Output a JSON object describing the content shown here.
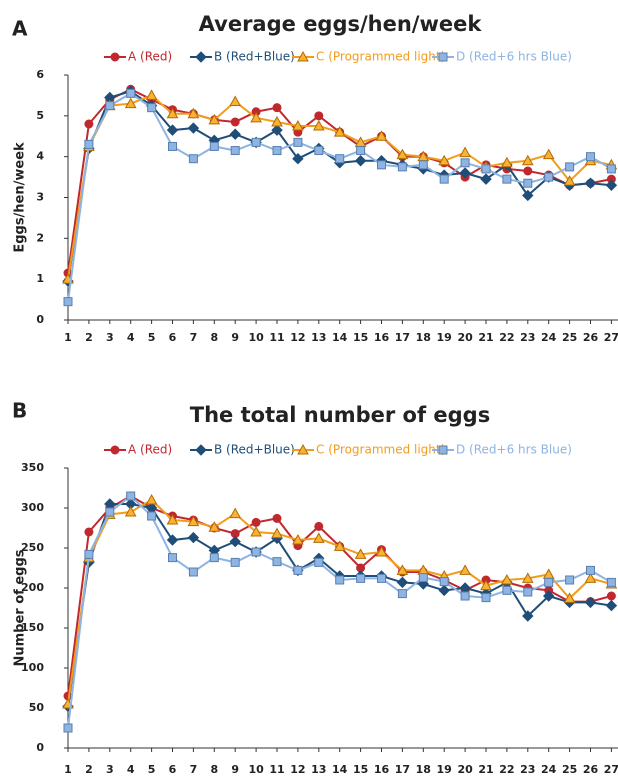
{
  "chart_data": [
    {
      "type": "line",
      "panel_label": "A",
      "title": "Average eggs/hen/week",
      "y_label": "Eggs/hen/week",
      "categories": [
        "1",
        "2",
        "3",
        "4",
        "5",
        "6",
        "7",
        "8",
        "9",
        "10",
        "11",
        "12",
        "13",
        "14",
        "15",
        "16",
        "17",
        "18",
        "19",
        "20",
        "21",
        "22",
        "23",
        "24",
        "25",
        "26",
        "27"
      ],
      "ylim": [
        0,
        6
      ],
      "yticks": [
        0,
        1,
        2,
        3,
        4,
        5,
        6
      ],
      "legend": "top",
      "series": [
        {
          "name": "A (Red)",
          "color": "#c0282e",
          "marker": "circle",
          "values": [
            1.15,
            4.8,
            5.4,
            5.65,
            5.4,
            5.15,
            5.05,
            4.9,
            4.85,
            5.1,
            5.2,
            4.6,
            5.0,
            4.6,
            4.25,
            4.5,
            4.0,
            4.0,
            3.85,
            3.5,
            3.8,
            3.7,
            3.65,
            3.55,
            3.3,
            3.35,
            3.45
          ]
        },
        {
          "name": "B (Red+Blue)",
          "color": "#1f4e79",
          "marker": "diamond",
          "values": [
            0.95,
            4.2,
            5.45,
            5.6,
            5.25,
            4.65,
            4.7,
            4.4,
            4.55,
            4.35,
            4.65,
            3.95,
            4.2,
            3.85,
            3.9,
            3.9,
            3.8,
            3.7,
            3.55,
            3.6,
            3.45,
            3.8,
            3.05,
            3.5,
            3.3,
            3.35,
            3.3
          ]
        },
        {
          "name": "C (Programmed light)",
          "color": "#f39c1c",
          "marker": "triangle",
          "values": [
            1.0,
            4.25,
            5.25,
            5.3,
            5.5,
            5.05,
            5.05,
            4.9,
            5.35,
            4.95,
            4.85,
            4.75,
            4.75,
            4.6,
            4.35,
            4.5,
            4.05,
            4.0,
            3.9,
            4.1,
            3.75,
            3.85,
            3.9,
            4.05,
            3.4,
            3.9,
            3.8
          ]
        },
        {
          "name": "D (Red+6 hrs Blue)",
          "color": "#8db4e2",
          "marker": "square",
          "values": [
            0.45,
            4.3,
            5.25,
            5.55,
            5.2,
            4.25,
            3.95,
            4.25,
            4.15,
            4.35,
            4.15,
            4.35,
            4.15,
            3.95,
            4.15,
            3.8,
            3.75,
            3.8,
            3.45,
            3.85,
            3.7,
            3.45,
            3.35,
            3.5,
            3.75,
            4.0,
            3.7
          ]
        }
      ]
    },
    {
      "type": "line",
      "panel_label": "B",
      "title": "The total number of eggs",
      "y_label": "Number of eggs",
      "categories": [
        "1",
        "2",
        "3",
        "4",
        "5",
        "6",
        "7",
        "8",
        "9",
        "10",
        "11",
        "12",
        "13",
        "14",
        "15",
        "16",
        "17",
        "18",
        "19",
        "20",
        "21",
        "22",
        "23",
        "24",
        "25",
        "26",
        "27"
      ],
      "ylim": [
        0,
        350
      ],
      "yticks": [
        0,
        50,
        100,
        150,
        200,
        250,
        300,
        350
      ],
      "legend": "top",
      "series": [
        {
          "name": "A (Red)",
          "color": "#c0282e",
          "marker": "circle",
          "values": [
            65,
            270,
            300,
            315,
            300,
            290,
            285,
            275,
            268,
            282,
            287,
            253,
            277,
            252,
            225,
            248,
            220,
            220,
            210,
            197,
            210,
            207,
            200,
            197,
            183,
            183,
            190
          ]
        },
        {
          "name": "B (Red+Blue)",
          "color": "#1f4e79",
          "marker": "diamond",
          "values": [
            52,
            232,
            305,
            305,
            300,
            260,
            263,
            247,
            258,
            245,
            262,
            222,
            237,
            215,
            215,
            215,
            207,
            205,
            197,
            200,
            193,
            207,
            165,
            190,
            182,
            182,
            178
          ]
        },
        {
          "name": "C (Programmed light)",
          "color": "#f39c1c",
          "marker": "triangle",
          "values": [
            55,
            238,
            292,
            295,
            310,
            285,
            283,
            276,
            293,
            270,
            268,
            260,
            262,
            252,
            242,
            245,
            222,
            222,
            215,
            222,
            203,
            210,
            212,
            217,
            187,
            212,
            205
          ]
        },
        {
          "name": "D (Red+6 hrs Blue)",
          "color": "#8db4e2",
          "marker": "square",
          "values": [
            25,
            242,
            295,
            315,
            290,
            238,
            220,
            238,
            232,
            245,
            233,
            222,
            232,
            210,
            212,
            212,
            193,
            213,
            208,
            190,
            188,
            197,
            195,
            207,
            210,
            222,
            207
          ]
        }
      ]
    }
  ]
}
